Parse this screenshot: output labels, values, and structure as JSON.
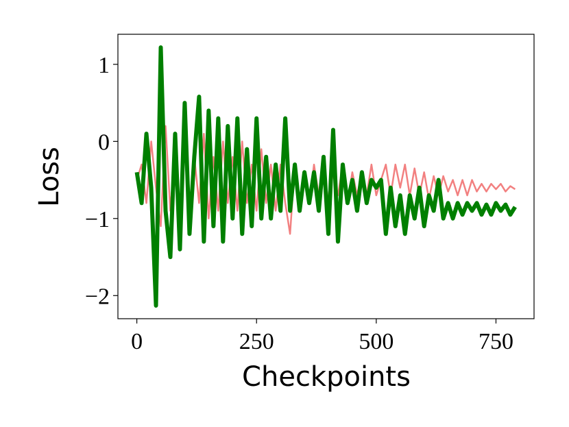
{
  "chart_data": {
    "type": "line",
    "xlabel": "Checkpoints",
    "ylabel": "Loss",
    "x": [
      0,
      10,
      20,
      30,
      40,
      50,
      60,
      70,
      80,
      90,
      100,
      110,
      120,
      130,
      140,
      150,
      160,
      170,
      180,
      190,
      200,
      210,
      220,
      230,
      240,
      250,
      260,
      270,
      280,
      290,
      300,
      310,
      320,
      330,
      340,
      350,
      360,
      370,
      380,
      390,
      400,
      410,
      420,
      430,
      440,
      450,
      460,
      470,
      480,
      490,
      500,
      510,
      520,
      530,
      540,
      550,
      560,
      570,
      580,
      590,
      600,
      610,
      620,
      630,
      640,
      650,
      660,
      670,
      680,
      690,
      700,
      710,
      720,
      730,
      740,
      750,
      760,
      770,
      780,
      790
    ],
    "series": [
      {
        "color": "#f28080",
        "width": 2.5,
        "values": [
          -0.5,
          -0.3,
          -0.8,
          0.0,
          -0.6,
          -1.1,
          0.2,
          -0.9,
          -0.1,
          -1.0,
          0.0,
          -0.9,
          -0.2,
          -0.8,
          0.1,
          -1.0,
          -0.2,
          -0.9,
          0.0,
          -0.8,
          -0.2,
          -0.9,
          0.0,
          -0.8,
          -0.3,
          -0.9,
          -0.1,
          -0.8,
          -0.3,
          -0.9,
          -0.3,
          -0.8,
          -1.2,
          -0.3,
          -0.8,
          -0.4,
          -0.8,
          -0.3,
          -0.7,
          -0.3,
          -0.8,
          -0.4,
          -0.7,
          -0.3,
          -0.8,
          -0.4,
          -0.7,
          -0.4,
          -0.7,
          -0.3,
          -0.7,
          -0.5,
          -0.3,
          -0.7,
          -0.3,
          -0.6,
          -0.3,
          -0.7,
          -0.35,
          -0.7,
          -0.4,
          -0.75,
          -0.45,
          -0.7,
          -0.45,
          -0.65,
          -0.5,
          -0.7,
          -0.5,
          -0.7,
          -0.5,
          -0.65,
          -0.55,
          -0.65,
          -0.55,
          -0.62,
          -0.55,
          -0.65,
          -0.58,
          -0.62
        ]
      },
      {
        "color": "#007f00",
        "width": 6,
        "values": [
          -0.4,
          -0.8,
          0.1,
          -0.6,
          -2.13,
          1.22,
          -0.9,
          -1.5,
          0.1,
          -1.4,
          0.5,
          -1.2,
          -0.2,
          0.58,
          -1.3,
          0.4,
          -1.1,
          0.3,
          -1.3,
          0.2,
          -1.0,
          0.3,
          -1.2,
          -0.1,
          -1.1,
          0.3,
          -1.0,
          -0.2,
          -1.0,
          -0.3,
          -0.9,
          0.3,
          -0.9,
          -0.3,
          -0.9,
          -0.4,
          -0.8,
          -0.4,
          -0.9,
          -0.2,
          -1.2,
          0.15,
          -1.3,
          -0.3,
          -0.8,
          -0.5,
          -0.9,
          -0.4,
          -0.8,
          -0.5,
          -0.6,
          -0.5,
          -1.2,
          -0.6,
          -1.1,
          -0.7,
          -1.2,
          -0.7,
          -1.0,
          -0.6,
          -1.1,
          -0.7,
          -0.9,
          -0.5,
          -1.0,
          -0.8,
          -1.0,
          -0.8,
          -0.95,
          -0.8,
          -0.9,
          -0.8,
          -0.95,
          -0.82,
          -0.95,
          -0.8,
          -0.9,
          -0.82,
          -0.95,
          -0.85
        ]
      }
    ],
    "xlim": [
      -39.5,
      829.5
    ],
    "ylim": [
      -2.3,
      1.39
    ],
    "xticks": [
      0,
      250,
      500,
      750
    ],
    "yticks": [
      {
        "value": -2,
        "label": "−2"
      },
      {
        "value": -1,
        "label": "−1"
      },
      0,
      1
    ],
    "grid": false
  }
}
